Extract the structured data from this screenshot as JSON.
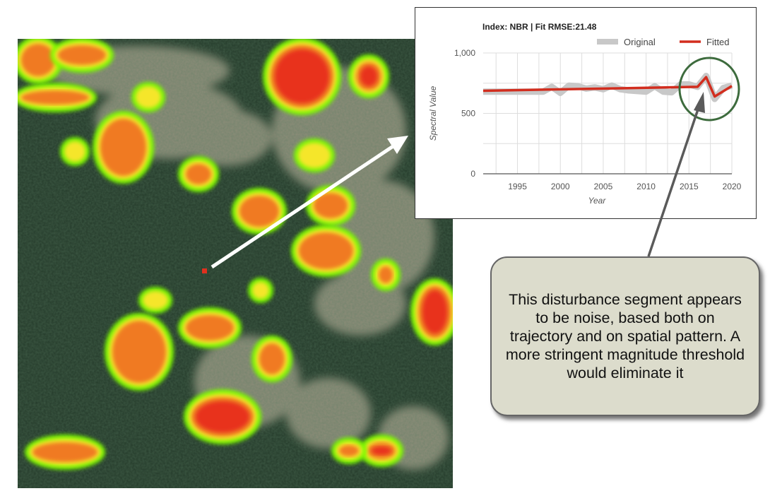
{
  "figure": {
    "callout_text": "This disturbance segment appears to be noise, based both on trajectory and on spatial pattern. A more stringent magnitude threshold would eliminate it",
    "colors": {
      "forest": "#243a2a",
      "cleared": "#8c8c78",
      "low_magnitude": "#7cfc00",
      "mid_magnitude": "#f5e62a",
      "high_magnitude": "#f07a22",
      "max_magnitude": "#e8321e",
      "callout_fill": "#dcdccc",
      "highlight_circle": "#3d6b3d",
      "pointer_arrow": "#5a5a5a",
      "link_arrow": "#ffffff"
    }
  },
  "chart_data": {
    "type": "line",
    "title": "Index: NBR | Fit RMSE:21.48",
    "xlabel": "Year",
    "ylabel": "Spectral Value",
    "xlim": [
      1991,
      2020
    ],
    "ylim": [
      0,
      1000
    ],
    "xticks": [
      1995,
      2000,
      2005,
      2010,
      2015,
      2020
    ],
    "yticks": [
      0,
      500,
      1000
    ],
    "ytick_labels": [
      "0",
      "500",
      "1,000"
    ],
    "grid": true,
    "legend_position": "top-right",
    "series": [
      {
        "name": "Original",
        "color": "#c8c8c8",
        "x": [
          1991,
          1992,
          1993,
          1994,
          1995,
          1996,
          1997,
          1998,
          1999,
          2000,
          2001,
          2002,
          2003,
          2004,
          2005,
          2006,
          2007,
          2008,
          2009,
          2010,
          2011,
          2012,
          2013,
          2014,
          2015,
          2016,
          2017,
          2018,
          2019,
          2020
        ],
        "y": [
          680,
          680,
          680,
          680,
          680,
          680,
          680,
          680,
          720,
          670,
          730,
          725,
          705,
          715,
          700,
          730,
          700,
          690,
          685,
          680,
          725,
          680,
          675,
          740,
          740,
          720,
          810,
          620,
          710,
          730
        ]
      },
      {
        "name": "Fitted",
        "color": "#d22d1e",
        "x": [
          1991,
          2016,
          2017,
          2018,
          2020
        ],
        "y": [
          687,
          720,
          800,
          640,
          727
        ]
      }
    ]
  }
}
